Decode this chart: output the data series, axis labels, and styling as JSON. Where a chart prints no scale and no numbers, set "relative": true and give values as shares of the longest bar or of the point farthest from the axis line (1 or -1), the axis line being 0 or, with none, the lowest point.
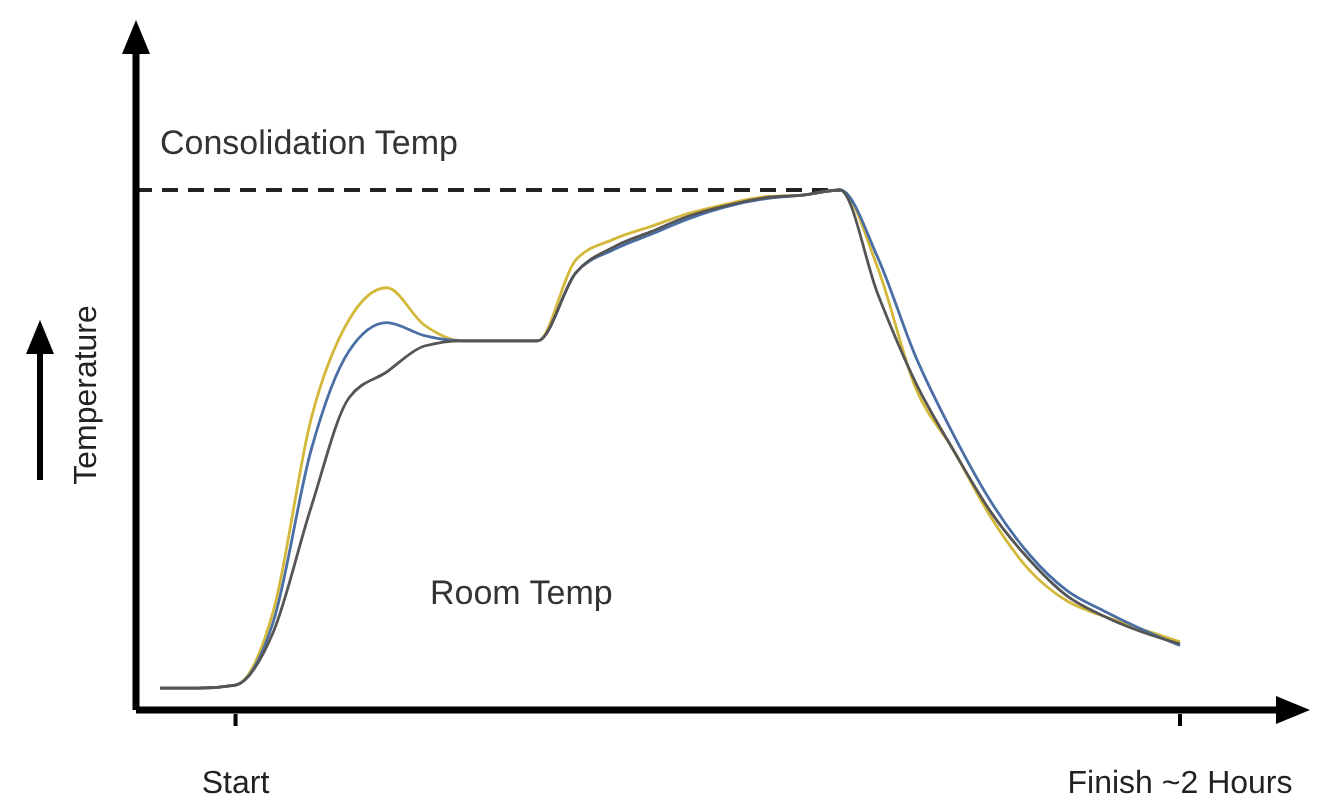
{
  "chart_data": {
    "type": "line",
    "relative": true,
    "ylabel": "Temperature",
    "annotations": [
      "Room Temp"
    ],
    "categories": [
      null,
      null,
      "Start",
      null,
      null,
      null,
      null,
      null,
      null,
      null,
      null,
      null,
      null,
      null,
      null,
      null,
      null,
      null,
      null,
      null,
      null,
      null,
      null,
      null,
      null,
      null,
      null,
      "Finish ~2 Hours"
    ],
    "ref_lines": [
      {
        "axis": "y",
        "value": 1,
        "label": "Consolidation Temp",
        "color": "#222222",
        "line_style": "dashed"
      }
    ],
    "series": [
      {
        "color": "#d4b83a",
        "values": [
          0.042,
          0.042,
          0.048,
          0.19,
          0.56,
          0.75,
          0.812,
          0.74,
          0.71,
          0.71,
          0.71,
          0.865,
          0.905,
          0.93,
          0.955,
          0.973,
          0.987,
          0.99,
          1,
          0.85,
          0.62,
          0.5,
          0.37,
          0.27,
          0.21,
          0.18,
          0.155,
          0.131
        ]
      },
      {
        "color": "#4a6fa5",
        "values": [
          0.042,
          0.042,
          0.048,
          0.17,
          0.5,
          0.69,
          0.745,
          0.72,
          0.71,
          0.71,
          0.71,
          0.84,
          0.885,
          0.915,
          0.945,
          0.968,
          0.983,
          0.99,
          1,
          0.87,
          0.68,
          0.53,
          0.4,
          0.3,
          0.23,
          0.19,
          0.155,
          0.124
        ]
      },
      {
        "color": "#555555",
        "values": [
          0.042,
          0.042,
          0.048,
          0.15,
          0.39,
          0.6,
          0.65,
          0.7,
          0.71,
          0.71,
          0.71,
          0.84,
          0.89,
          0.92,
          0.95,
          0.97,
          0.985,
          0.99,
          1,
          0.8,
          0.63,
          0.5,
          0.38,
          0.29,
          0.22,
          0.18,
          0.15,
          0.127
        ]
      }
    ]
  }
}
